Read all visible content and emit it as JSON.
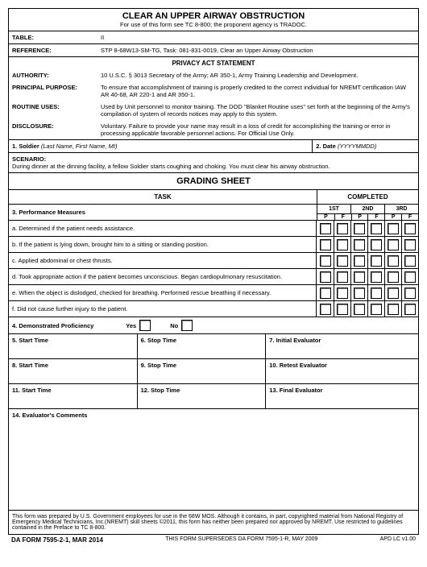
{
  "header": {
    "title": "CLEAR AN UPPER AIRWAY OBSTRUCTION",
    "subtitle": "For use of this form see TC 8-800;  the proponent agency is TRADOC."
  },
  "meta": {
    "table_label": "TABLE:",
    "table_value": "II",
    "reference_label": "REFERENCE:",
    "reference_value": "STP 8-68W13-SM-TG, Task:  081-831-0019, Clear an Upper Airway Obstruction"
  },
  "privacy": {
    "heading": "PRIVACY ACT STATEMENT",
    "rows": [
      {
        "label": "AUTHORITY:",
        "value": "10 U.S.C. § 3013 Secretary of the Army; AR 350-1, Army Training Leadership and Development."
      },
      {
        "label": "PRINCIPAL PURPOSE:",
        "value": "To ensure that accomplishment of training is properly credited to the correct individual for NREMT certification IAW AR 40-68, AR 220-1 and AR 350-1."
      },
      {
        "label": "ROUTINE USES:",
        "value": "Used by Unit personnel to monitor training.  The DOD \"Blanket Routine uses\" set forth at the beginning of the Army's compilation of system of records notices may apply to this system."
      },
      {
        "label": "DISCLOSURE:",
        "value": "Voluntary.  Failure to provide your name may result in a loss of credit for accomplishing the training or error in processing applicable favorable personnel actions.  For Official Use Only."
      }
    ]
  },
  "fields": {
    "soldier_label": "1.  Soldier",
    "soldier_hint": "(Last Name, First Name, MI)",
    "date_label": "2.  Date",
    "date_hint": "(YYYYMMDD)"
  },
  "scenario": {
    "label": "SCENARIO:",
    "text": "During dinner at the dinning facility, a fellow Soldier starts coughing and choking. You must clear his airway obstruction."
  },
  "grading": {
    "heading": "GRADING SHEET",
    "task_label": "TASK",
    "completed_label": "COMPLETED",
    "measures_label": "3.  Performance Measures",
    "attempts": [
      "1ST",
      "2ND",
      "3RD"
    ],
    "pf": [
      "P",
      "F"
    ],
    "items": [
      "a.  Determined if the patient needs assistance.",
      "b.  If the patient is lying down, brought him to a sitting or standing position.",
      "c.  Applied abdominal or chest thrusts.",
      "d.  Took appropriate action if the patient becomes unconscious. Began cardiopulmonary resuscitation.",
      "e.  When the object is dislodged, checked for breathing. Performed rescue breathing if necessary.",
      "f.  Did not cause further injury to the patient."
    ],
    "proficiency_label": "4.  Demonstrated Proficiency",
    "yes": "Yes",
    "no": "No"
  },
  "times": [
    {
      "start": "5.  Start Time",
      "stop": "6.  Stop Time",
      "eval": "7.  Initial Evaluator"
    },
    {
      "start": "8.  Start Time",
      "stop": "9.  Stop Time",
      "eval": "10.  Retest Evaluator"
    },
    {
      "start": "11.  Start Time",
      "stop": "12.  Stop Time",
      "eval": "13.  Final Evaluator"
    }
  ],
  "comments_label": "14.  Evaluator's  Comments",
  "footnote": "This form was prepared by U.S. Government employees for use in the 68W MOS.  Although it contains, in part, copyrighted material from National Registry of Emergency Medical Technicians, Inc.(NREMT) skill sheets ©2011, this form has neither been prepared nor approved by NREMT. Use restricted to guidelines contained in the Preface to TC 8-800.",
  "footer": {
    "left": "DA FORM 7595-2-1, MAR 2014",
    "center": "THIS FORM SUPERSEDES DA FORM 7595-1-R, MAY 2009",
    "right": "APD LC v1.00"
  }
}
